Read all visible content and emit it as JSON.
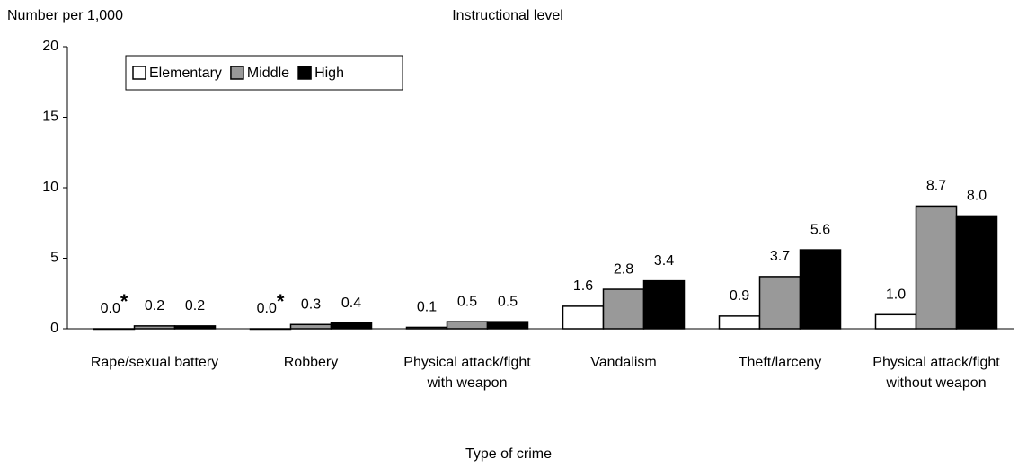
{
  "chart_data": {
    "type": "bar",
    "y_label": "Number per 1,000",
    "legend_title": "Instructional level",
    "x_label": "Type of crime",
    "categories": [
      "Rape/sexual battery",
      "Robbery",
      "Physical attack/fight with weapon",
      "Vandalism",
      "Theft/larceny",
      "Physical attack/fight without weapon"
    ],
    "series": [
      {
        "name": "Elementary",
        "color": "#ffffff",
        "values": [
          0,
          0,
          0.1,
          1.6,
          0.9,
          1.0
        ],
        "value_labels": [
          "0.0*",
          "0.0*",
          "0.1",
          "1.6",
          "0.9",
          "1.0"
        ]
      },
      {
        "name": "Middle",
        "color": "#999999",
        "values": [
          0.2,
          0.3,
          0.5,
          2.8,
          3.7,
          8.7
        ],
        "value_labels": [
          "0.2",
          "0.3",
          "0.5",
          "2.8",
          "3.7",
          "8.7"
        ]
      },
      {
        "name": "High",
        "color": "#000000",
        "values": [
          0.2,
          0.4,
          0.5,
          3.4,
          5.6,
          8.0
        ],
        "value_labels": [
          "0.2",
          "0.4",
          "0.5",
          "3.4",
          "5.6",
          "8.0"
        ]
      }
    ],
    "ylim": [
      0,
      20
    ],
    "yticks": [
      0,
      5,
      10,
      15,
      20
    ],
    "grid": false,
    "legend": "top-left"
  }
}
